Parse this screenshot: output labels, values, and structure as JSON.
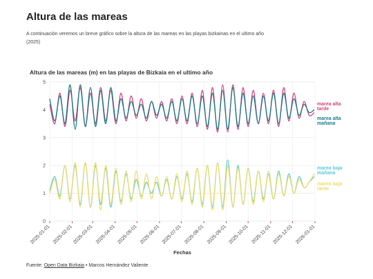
{
  "title": "Altura de las mareas",
  "subtitle": "A continuación veremos un breve gráfico sobre la altura de las mareas en las playas bizkainas en el ultimo año (2025)",
  "source": {
    "prefix": "Fuente:",
    "link": "Open Data Bizkaia",
    "suffix": "• Marcos Hernández Valiente"
  },
  "chart_data": {
    "type": "line",
    "title": "Altura de las mareas (m) en las playas de Bizkaia en el ultimo año",
    "x_label": "Fechas",
    "x": [
      "2025-01-01",
      "2025-01-08",
      "2025-01-15",
      "2025-01-22",
      "2025-01-29",
      "2025-02-05",
      "2025-02-12",
      "2025-02-19",
      "2025-02-26",
      "2025-03-05",
      "2025-03-12",
      "2025-03-19",
      "2025-03-26",
      "2025-04-02",
      "2025-04-09",
      "2025-04-16",
      "2025-04-23",
      "2025-04-30",
      "2025-05-07",
      "2025-05-14",
      "2025-05-21",
      "2025-05-28",
      "2025-06-04",
      "2025-06-11",
      "2025-06-18",
      "2025-06-25",
      "2025-07-02",
      "2025-07-09",
      "2025-07-16",
      "2025-07-23",
      "2025-07-30",
      "2025-08-06",
      "2025-08-13",
      "2025-08-20",
      "2025-08-27",
      "2025-09-03",
      "2025-09-10",
      "2025-09-17",
      "2025-09-24",
      "2025-10-01",
      "2025-10-08",
      "2025-10-15",
      "2025-10-22",
      "2025-10-29",
      "2025-11-05",
      "2025-11-12",
      "2025-11-19",
      "2025-11-26",
      "2025-12-03",
      "2025-12-10",
      "2025-12-17",
      "2025-12-24",
      "2025-12-31"
    ],
    "xlim": [
      "2025-01-01",
      "2026-01-01"
    ],
    "xticks": [
      "2025-01-01",
      "2025-02-01",
      "2025-03-01",
      "2025-04-01",
      "2025-05-01",
      "2025-06-01",
      "2025-07-01",
      "2025-08-01",
      "2025-09-01",
      "2025-10-01",
      "2025-11-01",
      "2025-12-01",
      "2026-01-01"
    ],
    "ylim": [
      0,
      5
    ],
    "yticks": [
      0,
      1,
      2,
      3,
      4,
      5
    ],
    "grid": true,
    "series": [
      {
        "name": "marea alta tarde",
        "color": "#d4457b",
        "values": [
          4.2,
          3.5,
          4.6,
          3.4,
          4.7,
          3.6,
          4.8,
          3.4,
          4.6,
          3.5,
          4.8,
          3.6,
          4.7,
          3.5,
          4.6,
          3.6,
          4.5,
          3.7,
          4.4,
          3.6,
          4.3,
          3.7,
          4.3,
          3.6,
          4.4,
          3.5,
          4.5,
          3.5,
          4.6,
          3.4,
          4.7,
          3.3,
          4.8,
          3.2,
          4.9,
          3.2,
          4.9,
          3.3,
          4.8,
          3.4,
          4.7,
          3.5,
          4.6,
          3.5,
          4.7,
          3.4,
          4.8,
          3.6,
          4.6,
          3.7,
          4.3,
          3.8,
          3.9
        ]
      },
      {
        "name": "marea alta mañana",
        "color": "#1a7a8a",
        "values": [
          4.4,
          3.6,
          4.5,
          3.5,
          4.9,
          3.3,
          4.9,
          3.4,
          4.8,
          3.4,
          4.7,
          3.5,
          4.8,
          3.6,
          4.4,
          3.7,
          4.3,
          3.8,
          4.2,
          3.7,
          4.3,
          3.8,
          4.2,
          3.7,
          4.3,
          3.6,
          4.4,
          3.6,
          4.5,
          3.5,
          4.5,
          3.4,
          4.6,
          3.3,
          4.7,
          3.3,
          4.8,
          3.4,
          4.6,
          3.5,
          4.5,
          3.5,
          4.5,
          3.6,
          4.6,
          3.5,
          4.6,
          3.7,
          4.4,
          3.8,
          4.2,
          3.9,
          4.0
        ]
      },
      {
        "name": "marea baja mañana",
        "color": "#5ccbd3",
        "values": [
          1.1,
          1.6,
          0.9,
          2.0,
          0.8,
          2.0,
          0.6,
          2.1,
          0.5,
          2.0,
          0.6,
          1.9,
          0.5,
          1.8,
          0.7,
          1.7,
          0.8,
          1.5,
          0.9,
          1.4,
          1.0,
          1.4,
          0.9,
          1.5,
          0.8,
          1.6,
          0.8,
          1.7,
          0.7,
          1.9,
          0.6,
          2.0,
          0.5,
          2.1,
          0.5,
          2.2,
          0.5,
          2.0,
          0.6,
          1.9,
          0.7,
          1.8,
          0.8,
          1.7,
          0.8,
          1.8,
          0.9,
          1.7,
          1.0,
          1.6,
          1.2,
          1.4,
          1.6
        ]
      },
      {
        "name": "marea baja tarde",
        "color": "#f0dc6a",
        "values": [
          1.0,
          1.5,
          0.8,
          2.0,
          0.7,
          2.1,
          0.5,
          2.1,
          0.5,
          2.1,
          0.4,
          2.0,
          0.6,
          1.9,
          0.6,
          1.8,
          0.7,
          1.8,
          0.8,
          1.7,
          0.8,
          1.6,
          0.9,
          1.6,
          0.8,
          1.7,
          0.7,
          1.8,
          0.6,
          1.9,
          0.5,
          2.0,
          0.4,
          2.1,
          0.4,
          2.0,
          0.5,
          1.9,
          0.6,
          1.9,
          0.6,
          1.8,
          0.7,
          1.8,
          0.8,
          1.7,
          0.9,
          1.6,
          1.0,
          1.5,
          1.2,
          1.4,
          1.7
        ]
      }
    ]
  }
}
